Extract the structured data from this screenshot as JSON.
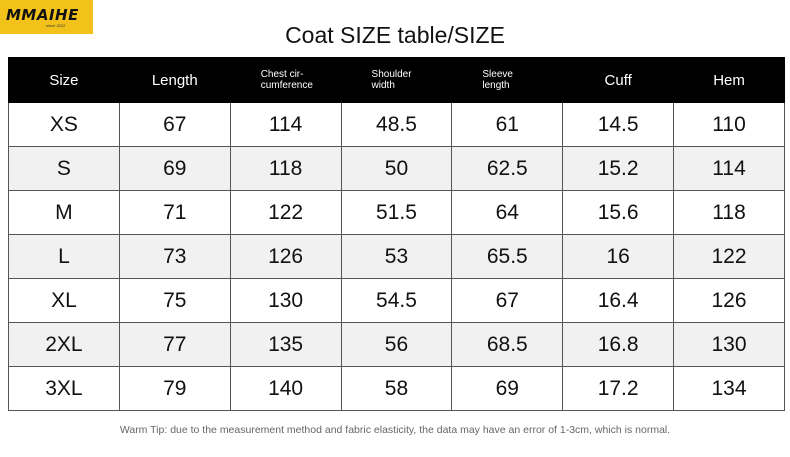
{
  "brand": {
    "logo_text": "MMAIHE",
    "logo_tagline": "since 2022",
    "logo_bg_color": "#f2c21b"
  },
  "title": "Coat SIZE table/SIZE",
  "table": {
    "headers": [
      "Size",
      "Length",
      "Chest cir-\ncumference",
      "Shoulder\nwidth",
      "Sleeve\nlength",
      "Cuff",
      "Hem"
    ],
    "rows": [
      [
        "XS",
        "67",
        "114",
        "48.5",
        "61",
        "14.5",
        "110"
      ],
      [
        "S",
        "69",
        "118",
        "50",
        "62.5",
        "15.2",
        "114"
      ],
      [
        "M",
        "71",
        "122",
        "51.5",
        "64",
        "15.6",
        "118"
      ],
      [
        "L",
        "73",
        "126",
        "53",
        "65.5",
        "16",
        "122"
      ],
      [
        "XL",
        "75",
        "130",
        "54.5",
        "67",
        "16.4",
        "126"
      ],
      [
        "2XL",
        "77",
        "135",
        "56",
        "68.5",
        "16.8",
        "130"
      ],
      [
        "3XL",
        "79",
        "140",
        "58",
        "69",
        "17.2",
        "134"
      ]
    ],
    "header_bg_color": "#000000",
    "alt_row_color": "#f1f1f1"
  },
  "footer_tip": "Warm Tip: due to the measurement method and fabric elasticity, the data may have an error of 1-3cm, which is normal."
}
